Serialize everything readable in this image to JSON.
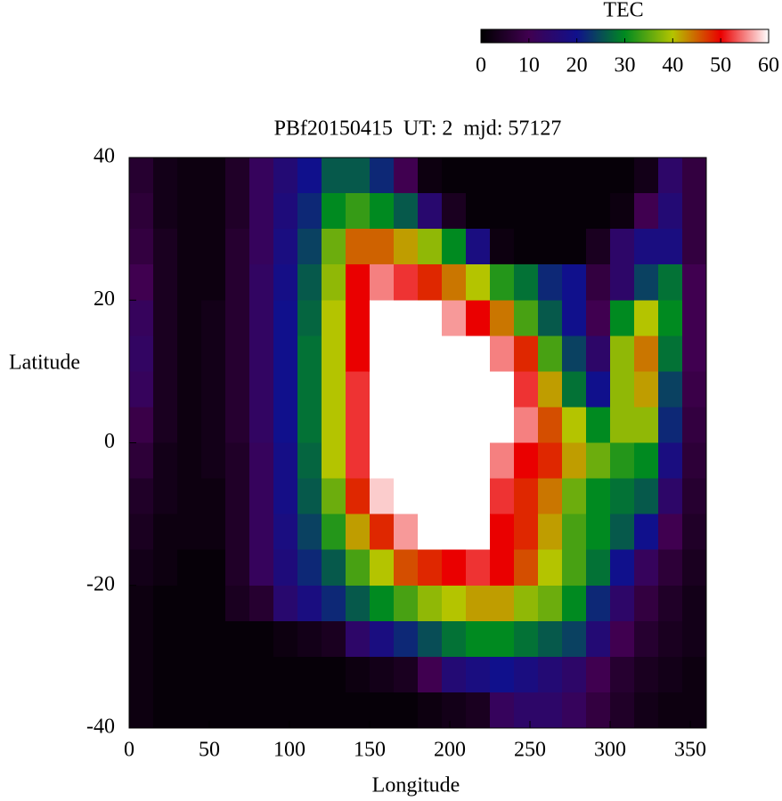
{
  "chart_data": {
    "type": "heatmap",
    "title": "PBf20150415  UT: 2  mjd: 57127",
    "x_label": "Longitude",
    "y_label": "Latitude",
    "xbins": [
      0,
      15,
      30,
      45,
      60,
      75,
      90,
      105,
      120,
      135,
      150,
      165,
      180,
      195,
      210,
      225,
      240,
      255,
      270,
      285,
      300,
      315,
      330,
      345,
      360
    ],
    "ybins": [
      40,
      35,
      30,
      25,
      20,
      15,
      10,
      5,
      0,
      -5,
      -10,
      -15,
      -20,
      -25,
      -30,
      -35,
      -40
    ],
    "z": [
      [
        6,
        3,
        2,
        2,
        5,
        12,
        16,
        20,
        26,
        26,
        22,
        10,
        2,
        1,
        1,
        1,
        1,
        1,
        1,
        1,
        1,
        3,
        14,
        8
      ],
      [
        7,
        3,
        2,
        2,
        5,
        12,
        17,
        22,
        30,
        33,
        30,
        26,
        15,
        4,
        1,
        1,
        1,
        1,
        1,
        1,
        2,
        10,
        16,
        8
      ],
      [
        8,
        4,
        2,
        2,
        6,
        12,
        18,
        24,
        36,
        45,
        45,
        42,
        38,
        30,
        18,
        2,
        1,
        1,
        1,
        4,
        14,
        18,
        18,
        8
      ],
      [
        10,
        4,
        2,
        2,
        6,
        13,
        19,
        26,
        38,
        50,
        55,
        52,
        48,
        44,
        40,
        32,
        28,
        22,
        20,
        8,
        14,
        24,
        28,
        10
      ],
      [
        12,
        4,
        2,
        3,
        6,
        13,
        20,
        27,
        40,
        50,
        60,
        60,
        60,
        56,
        50,
        44,
        34,
        26,
        20,
        10,
        30,
        40,
        30,
        10
      ],
      [
        13,
        4,
        2,
        3,
        6,
        13,
        20,
        28,
        40,
        50,
        60,
        60,
        60,
        60,
        60,
        55,
        48,
        34,
        24,
        14,
        38,
        44,
        28,
        10
      ],
      [
        12,
        4,
        2,
        3,
        6,
        13,
        20,
        28,
        40,
        52,
        60,
        60,
        60,
        60,
        60,
        60,
        52,
        42,
        28,
        20,
        38,
        42,
        24,
        9
      ],
      [
        9,
        4,
        2,
        3,
        6,
        13,
        20,
        28,
        40,
        52,
        60,
        60,
        60,
        60,
        60,
        60,
        55,
        46,
        40,
        30,
        38,
        38,
        22,
        8
      ],
      [
        7,
        3,
        2,
        3,
        5,
        12,
        19,
        27,
        40,
        52,
        60,
        60,
        60,
        60,
        60,
        55,
        50,
        48,
        42,
        36,
        32,
        30,
        18,
        7
      ],
      [
        5,
        3,
        2,
        2,
        5,
        12,
        19,
        26,
        36,
        48,
        58,
        60,
        60,
        60,
        60,
        52,
        48,
        44,
        36,
        30,
        28,
        26,
        14,
        6
      ],
      [
        4,
        2,
        2,
        2,
        5,
        12,
        18,
        24,
        32,
        42,
        48,
        56,
        60,
        60,
        60,
        50,
        48,
        42,
        34,
        30,
        26,
        20,
        10,
        5
      ],
      [
        3,
        2,
        1,
        1,
        5,
        12,
        17,
        22,
        26,
        34,
        40,
        46,
        48,
        50,
        52,
        50,
        46,
        40,
        34,
        28,
        20,
        12,
        7,
        4
      ],
      [
        2,
        1,
        1,
        1,
        4,
        6,
        15,
        18,
        22,
        26,
        30,
        34,
        38,
        40,
        42,
        42,
        38,
        36,
        30,
        22,
        14,
        8,
        5,
        3
      ],
      [
        2,
        1,
        1,
        1,
        1,
        1,
        2,
        3,
        4,
        14,
        18,
        22,
        25,
        28,
        30,
        30,
        28,
        26,
        24,
        16,
        10,
        6,
        4,
        3
      ],
      [
        2,
        1,
        1,
        1,
        1,
        1,
        1,
        1,
        1,
        2,
        3,
        4,
        10,
        16,
        18,
        20,
        18,
        16,
        14,
        10,
        6,
        4,
        3,
        2
      ],
      [
        2,
        1,
        1,
        1,
        1,
        1,
        1,
        1,
        1,
        1,
        1,
        1,
        2,
        3,
        4,
        12,
        14,
        14,
        12,
        8,
        5,
        3,
        2,
        2
      ]
    ],
    "xlim": [
      0,
      360
    ],
    "xticks": [
      0,
      50,
      100,
      150,
      200,
      250,
      300,
      350
    ],
    "ylim": [
      -40,
      40
    ],
    "yticks": [
      -40,
      -20,
      0,
      20,
      40
    ],
    "colorbar_label": "TEC",
    "zlim": [
      0,
      60
    ],
    "zticks": [
      0,
      10,
      20,
      30,
      40,
      50,
      60
    ],
    "colormap": [
      "#000000",
      "#400050",
      "#10108c",
      "#008a20",
      "#b4c400",
      "#ea0000",
      "#ffffff"
    ]
  }
}
